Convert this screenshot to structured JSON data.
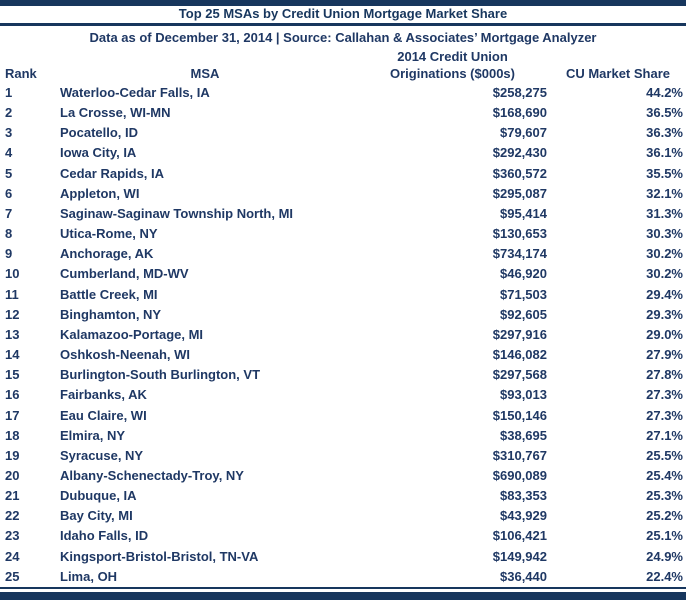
{
  "chart_data": {
    "type": "table",
    "title": "Top 25 MSAs by Credit Union Mortgage Market Share",
    "subtitle": "Data as of December 31, 2014 | Source: Callahan & Associates’ Mortgage Analyzer",
    "headers": {
      "rank": "Rank",
      "msa": "MSA",
      "originations_line1": "2014 Credit Union",
      "originations_line2": "Originations ($000s)",
      "market_share": "CU Market Share"
    },
    "rows": [
      {
        "rank": "1",
        "msa": "Waterloo-Cedar Falls, IA",
        "originations": "$258,275",
        "market_share": "44.2%"
      },
      {
        "rank": "2",
        "msa": "La Crosse, WI-MN",
        "originations": "$168,690",
        "market_share": "36.5%"
      },
      {
        "rank": "3",
        "msa": "Pocatello, ID",
        "originations": "$79,607",
        "market_share": "36.3%"
      },
      {
        "rank": "4",
        "msa": "Iowa City, IA",
        "originations": "$292,430",
        "market_share": "36.1%"
      },
      {
        "rank": "5",
        "msa": "Cedar Rapids, IA",
        "originations": "$360,572",
        "market_share": "35.5%"
      },
      {
        "rank": "6",
        "msa": "Appleton, WI",
        "originations": "$295,087",
        "market_share": "32.1%"
      },
      {
        "rank": "7",
        "msa": "Saginaw-Saginaw Township North, MI",
        "originations": "$95,414",
        "market_share": "31.3%"
      },
      {
        "rank": "8",
        "msa": "Utica-Rome, NY",
        "originations": "$130,653",
        "market_share": "30.3%"
      },
      {
        "rank": "9",
        "msa": "Anchorage, AK",
        "originations": "$734,174",
        "market_share": "30.2%"
      },
      {
        "rank": "10",
        "msa": "Cumberland, MD-WV",
        "originations": "$46,920",
        "market_share": "30.2%"
      },
      {
        "rank": "11",
        "msa": "Battle Creek, MI",
        "originations": "$71,503",
        "market_share": "29.4%"
      },
      {
        "rank": "12",
        "msa": "Binghamton, NY",
        "originations": "$92,605",
        "market_share": "29.3%"
      },
      {
        "rank": "13",
        "msa": "Kalamazoo-Portage, MI",
        "originations": "$297,916",
        "market_share": "29.0%"
      },
      {
        "rank": "14",
        "msa": "Oshkosh-Neenah, WI",
        "originations": "$146,082",
        "market_share": "27.9%"
      },
      {
        "rank": "15",
        "msa": "Burlington-South Burlington, VT",
        "originations": "$297,568",
        "market_share": "27.8%"
      },
      {
        "rank": "16",
        "msa": "Fairbanks, AK",
        "originations": "$93,013",
        "market_share": "27.3%"
      },
      {
        "rank": "17",
        "msa": "Eau Claire, WI",
        "originations": "$150,146",
        "market_share": "27.3%"
      },
      {
        "rank": "18",
        "msa": "Elmira, NY",
        "originations": "$38,695",
        "market_share": "27.1%"
      },
      {
        "rank": "19",
        "msa": "Syracuse, NY",
        "originations": "$310,767",
        "market_share": "25.5%"
      },
      {
        "rank": "20",
        "msa": "Albany-Schenectady-Troy, NY",
        "originations": "$690,089",
        "market_share": "25.4%"
      },
      {
        "rank": "21",
        "msa": "Dubuque, IA",
        "originations": "$83,353",
        "market_share": "25.3%"
      },
      {
        "rank": "22",
        "msa": "Bay City, MI",
        "originations": "$43,929",
        "market_share": "25.2%"
      },
      {
        "rank": "23",
        "msa": "Idaho Falls, ID",
        "originations": "$106,421",
        "market_share": "25.1%"
      },
      {
        "rank": "24",
        "msa": "Kingsport-Bristol-Bristol, TN-VA",
        "originations": "$149,942",
        "market_share": "24.9%"
      },
      {
        "rank": "25",
        "msa": "Lima, OH",
        "originations": "$36,440",
        "market_share": "22.4%"
      }
    ],
    "colors": {
      "accent": "#17365D",
      "text": "#1F3864",
      "background": "#FFFFFF"
    },
    "layout": {
      "legend": "none",
      "grid": "off",
      "row_count": 25
    }
  }
}
